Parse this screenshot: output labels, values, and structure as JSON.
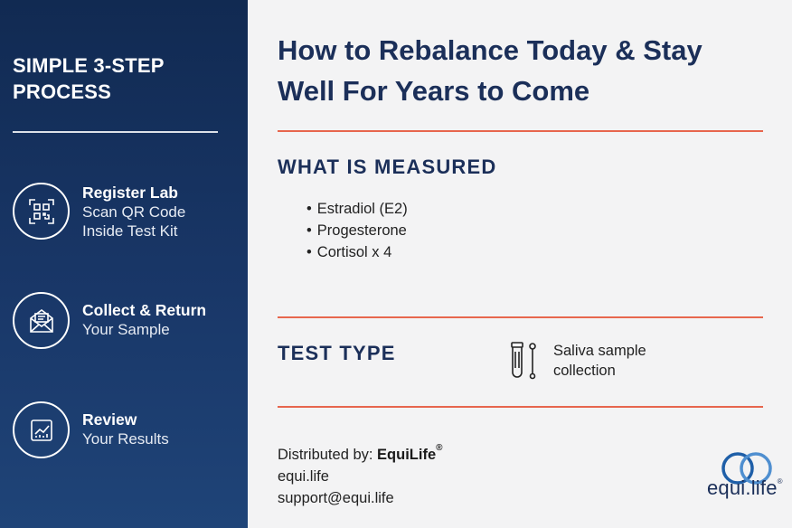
{
  "sidebar": {
    "title": "SIMPLE 3-STEP PROCESS",
    "steps": [
      {
        "icon": "qr-code-icon",
        "title": "Register Lab",
        "subtitle_1": "Scan QR Code",
        "subtitle_2": "Inside Test Kit"
      },
      {
        "icon": "envelope-icon",
        "title": "Collect & Return",
        "subtitle_1": "Your Sample",
        "subtitle_2": ""
      },
      {
        "icon": "chart-report-icon",
        "title": "Review",
        "subtitle_1": "Your Results",
        "subtitle_2": ""
      }
    ]
  },
  "main": {
    "headline_line1": "How to Rebalance Today & Stay",
    "headline_line2": "Well For Years to Come",
    "measured": {
      "heading": "WHAT IS MEASURED",
      "items": [
        "Estradiol (E2)",
        "Progesterone",
        "Cortisol x 4"
      ]
    },
    "test_type": {
      "heading": "TEST TYPE",
      "icon": "saliva-tube-icon",
      "line1": "Saliva sample",
      "line2": "collection"
    },
    "distribution": {
      "label": "Distributed by: ",
      "brand": "EquiLife",
      "registered": "®",
      "website": "equi.life",
      "email": "support@equi.life"
    },
    "logo": {
      "text": "equi.life",
      "mark": "®"
    }
  },
  "colors": {
    "sidebar_top": "#112a52",
    "sidebar_bottom": "#1f4478",
    "heading": "#1b2f59",
    "divider": "#e7664d",
    "logo_blue": "#1f5fa8"
  }
}
